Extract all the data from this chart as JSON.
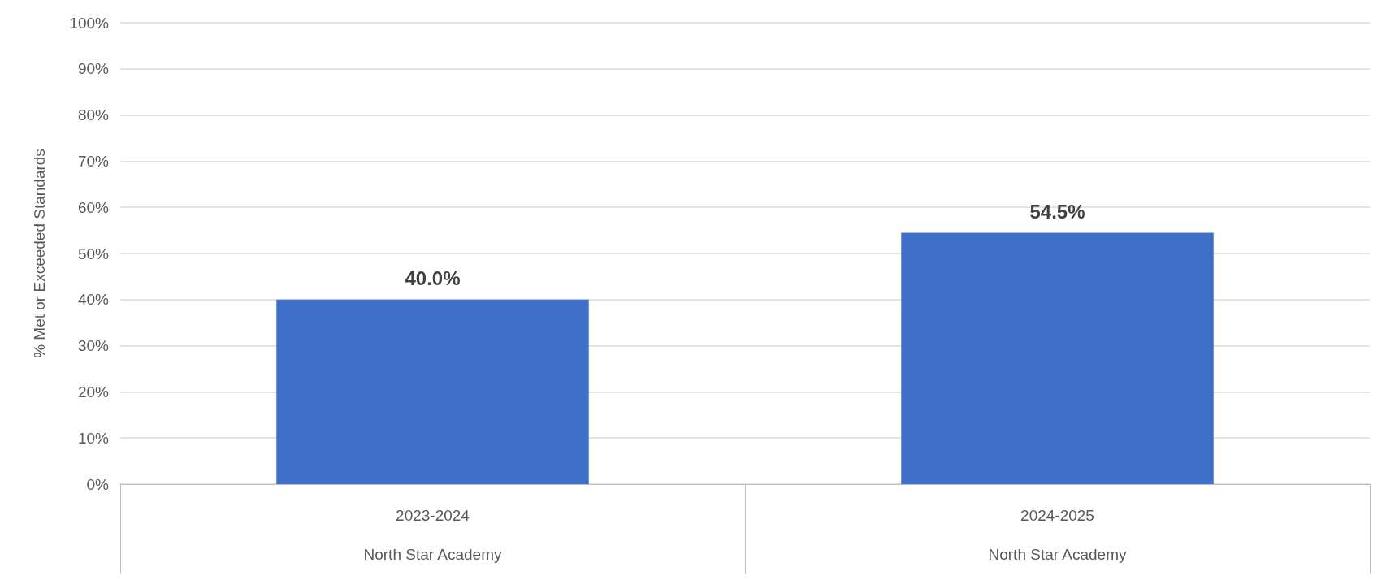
{
  "chart_data": {
    "type": "bar",
    "ylabel": "% Met or Exceeded Standards",
    "categories": [
      "2023-2024\n\nNorth Star Academy",
      "2024-2025\n\nNorth Star Academy"
    ],
    "values": [
      40.0,
      54.5
    ],
    "color": "#3f6fc9",
    "value_labels": [
      "40.0%",
      "54.5%"
    ],
    "ylim": [
      0,
      100
    ],
    "yticks": [
      {
        "value": 0,
        "label": "0%"
      },
      {
        "value": 10,
        "label": "10%"
      },
      {
        "value": 20,
        "label": "20%"
      },
      {
        "value": 30,
        "label": "30%"
      },
      {
        "value": 40,
        "label": "40%"
      },
      {
        "value": 50,
        "label": "50%"
      },
      {
        "value": 60,
        "label": "60%"
      },
      {
        "value": 70,
        "label": "70%"
      },
      {
        "value": 80,
        "label": "80%"
      },
      {
        "value": 90,
        "label": "90%"
      },
      {
        "value": 100,
        "label": "100%"
      }
    ],
    "grid": "y"
  }
}
